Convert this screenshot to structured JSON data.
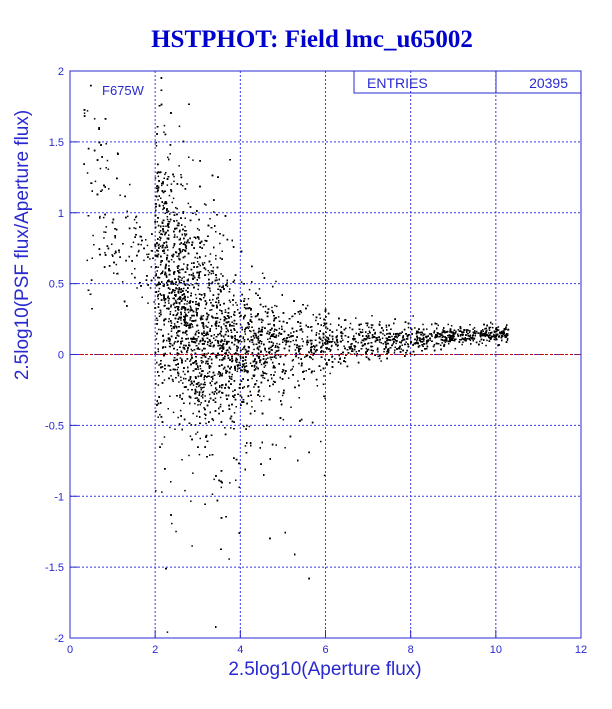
{
  "chart_data": {
    "type": "scatter",
    "title": "HSTPHOT: Field lmc_u65002",
    "xlabel": "2.5log10(Aperture flux)",
    "ylabel": "2.5log10(PSF flux/Aperture flux)",
    "xlim": [
      0,
      12
    ],
    "ylim": [
      -2,
      2
    ],
    "xticks": [
      "0",
      "2",
      "4",
      "6",
      "8",
      "10",
      "12"
    ],
    "yticks": [
      "-2",
      "-1.5",
      "-1",
      "-0.5",
      "0",
      "0.5",
      "1",
      "1.5",
      "2"
    ],
    "grid": true,
    "reference_line_y": 0,
    "filter_label": "F675W",
    "stats": {
      "entries_label": "ENTRIES",
      "entries_value": "20395"
    },
    "density_trend": [
      {
        "x": 2.0,
        "mean": 0.7,
        "spread": 0.5
      },
      {
        "x": 2.5,
        "mean": 0.45,
        "spread": 0.4
      },
      {
        "x": 3.0,
        "mean": 0.25,
        "spread": 0.4
      },
      {
        "x": 3.5,
        "mean": 0.12,
        "spread": 0.35
      },
      {
        "x": 4.0,
        "mean": 0.08,
        "spread": 0.25
      },
      {
        "x": 5.0,
        "mean": 0.06,
        "spread": 0.15
      },
      {
        "x": 6.0,
        "mean": 0.07,
        "spread": 0.1
      },
      {
        "x": 7.0,
        "mean": 0.09,
        "spread": 0.07
      },
      {
        "x": 8.0,
        "mean": 0.11,
        "spread": 0.05
      },
      {
        "x": 9.0,
        "mean": 0.13,
        "spread": 0.03
      },
      {
        "x": 10.0,
        "mean": 0.15,
        "spread": 0.03
      }
    ],
    "colors": {
      "axis": "#2929d0",
      "grid": "#3a3ae0",
      "points": "#000000",
      "zero_line": "#cc0000",
      "title": "#0000cc"
    }
  }
}
